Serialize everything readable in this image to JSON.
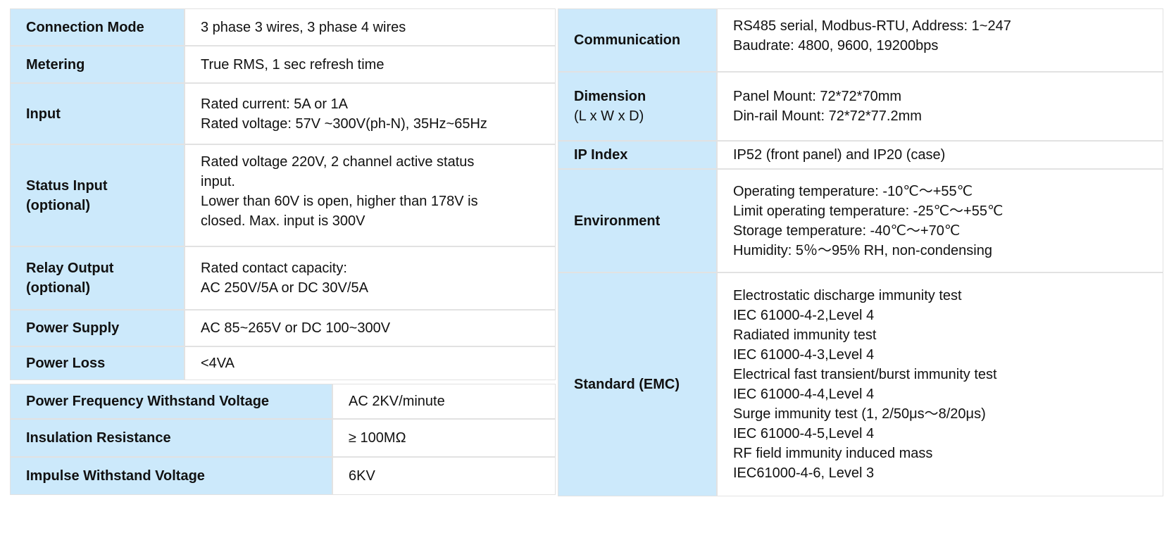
{
  "left_rows": [
    {
      "label": "Connection Mode",
      "value": [
        "3 phase 3 wires, 3 phase 4 wires"
      ]
    },
    {
      "label": "Metering",
      "value": [
        "True RMS, 1 sec refresh time"
      ]
    },
    {
      "label": "Input",
      "value": [
        "Rated current: 5A or 1A",
        "Rated voltage: 57V ~300V(ph-N), 35Hz~65Hz"
      ]
    },
    {
      "label": "Status Input",
      "label2": "(optional)",
      "value": [
        "Rated voltage 220V, 2 channel active status",
        "input.",
        "Lower than 60V is open, higher than 178V is",
        "closed. Max. input is 300V"
      ]
    },
    {
      "label": "Relay Output",
      "label2": "(optional)",
      "value": [
        "Rated contact capacity:",
        "AC 250V/5A or DC 30V/5A"
      ]
    },
    {
      "label": "Power Supply",
      "value": [
        "AC 85~265V  or DC 100~300V"
      ]
    },
    {
      "label": "Power Loss",
      "value": [
        "<4VA"
      ]
    }
  ],
  "left_wide_rows": [
    {
      "label": "Power Frequency Withstand Voltage",
      "value": "AC  2KV/minute"
    },
    {
      "label": "Insulation Resistance",
      "value": "≥ 100MΩ"
    },
    {
      "label": "Impulse Withstand Voltage",
      "value": "6KV"
    }
  ],
  "right_rows": [
    {
      "label": "Communication",
      "value": [
        "RS485 serial, Modbus-RTU, Address: 1~247",
        "Baudrate: 4800, 9600, 19200bps"
      ]
    },
    {
      "label": "Dimension",
      "label2": "(L x W x D)",
      "value": [
        "Panel Mount: 72*72*70mm",
        "Din-rail Mount: 72*72*77.2mm"
      ]
    },
    {
      "label": "IP Index",
      "value": [
        "IP52 (front panel) and IP20 (case)"
      ]
    },
    {
      "label": "Environment",
      "value": [
        "Operating temperature: -10℃～+55℃",
        "Limit operating temperature: -25℃～+55℃",
        "Storage temperature: -40℃～+70℃",
        "Humidity: 5％～95% RH, non-condensing"
      ]
    },
    {
      "label": "Standard (EMC)",
      "value": [
        "Electrostatic discharge immunity test",
        "IEC 61000-4-2,Level 4",
        "Radiated immunity test",
        "IEC 61000-4-3,Level 4",
        "Electrical fast transient/burst immunity test",
        "IEC 61000-4-4,Level 4",
        "Surge immunity test (1, 2/50μs～8/20μs)",
        "IEC 61000-4-5,Level 4",
        "RF field immunity induced mass",
        "IEC61000-4-6, Level 3"
      ]
    }
  ]
}
